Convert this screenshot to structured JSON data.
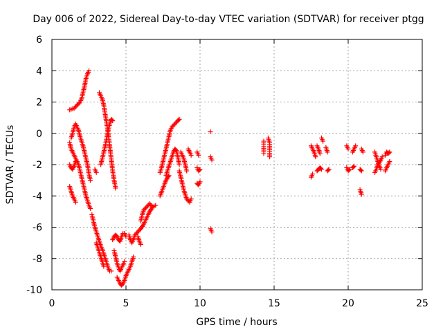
{
  "chart_data": {
    "type": "scatter",
    "title": "Day 006 of 2022, Sidereal Day-to-day VTEC variation (SDTVAR) for receiver ptgg",
    "xlabel": "GPS time / hours",
    "ylabel": "SDTVAR / TECUs",
    "xlim": [
      0,
      25
    ],
    "ylim": [
      -10,
      6
    ],
    "xticks": [
      0,
      5,
      10,
      15,
      20,
      25
    ],
    "yticks": [
      -10,
      -8,
      -6,
      -4,
      -2,
      0,
      2,
      4,
      6
    ],
    "grid": true,
    "marker": "+",
    "color": "#ff0000",
    "series": [
      {
        "name": "SDTVAR",
        "tracks": [
          [
            [
              1.2,
              1.5
            ],
            [
              1.5,
              1.6
            ],
            [
              1.7,
              1.8
            ],
            [
              1.9,
              2.0
            ],
            [
              2.0,
              2.2
            ],
            [
              2.1,
              2.6
            ],
            [
              2.2,
              3.0
            ],
            [
              2.3,
              3.5
            ],
            [
              2.4,
              3.8
            ],
            [
              2.5,
              4.0
            ]
          ],
          [
            [
              1.3,
              -0.3
            ],
            [
              1.4,
              0.0
            ],
            [
              1.5,
              0.4
            ],
            [
              1.6,
              0.6
            ],
            [
              1.7,
              0.4
            ],
            [
              1.8,
              0.2
            ],
            [
              1.9,
              -0.2
            ],
            [
              2.0,
              -0.5
            ],
            [
              2.1,
              -0.8
            ],
            [
              2.2,
              -1.2
            ],
            [
              2.3,
              -1.6
            ],
            [
              2.4,
              -2.0
            ],
            [
              2.5,
              -2.6
            ],
            [
              2.6,
              -3.0
            ]
          ],
          [
            [
              1.2,
              -0.6
            ],
            [
              1.3,
              -1.0
            ],
            [
              1.4,
              -1.2
            ],
            [
              1.5,
              -1.4
            ],
            [
              1.6,
              -1.6
            ],
            [
              1.7,
              -1.8
            ],
            [
              1.8,
              -2.0
            ],
            [
              1.9,
              -2.4
            ],
            [
              2.0,
              -2.8
            ],
            [
              2.1,
              -3.2
            ],
            [
              2.2,
              -3.6
            ],
            [
              2.3,
              -4.0
            ],
            [
              2.4,
              -4.3
            ],
            [
              2.5,
              -4.6
            ],
            [
              2.6,
              -4.8
            ]
          ],
          [
            [
              1.2,
              -2.0
            ],
            [
              1.3,
              -2.2
            ],
            [
              1.4,
              -2.3
            ],
            [
              1.5,
              -2.1
            ],
            [
              1.6,
              -1.8
            ]
          ],
          [
            [
              1.2,
              -3.4
            ],
            [
              1.3,
              -3.7
            ],
            [
              1.4,
              -4.0
            ],
            [
              1.5,
              -4.2
            ],
            [
              1.6,
              -4.4
            ]
          ],
          [
            [
              2.7,
              -5.2
            ],
            [
              2.8,
              -5.6
            ],
            [
              2.9,
              -6.0
            ],
            [
              3.0,
              -6.3
            ],
            [
              3.1,
              -6.6
            ],
            [
              3.2,
              -6.9
            ],
            [
              3.3,
              -7.2
            ],
            [
              3.4,
              -7.4
            ],
            [
              3.5,
              -7.7
            ],
            [
              3.6,
              -8.0
            ],
            [
              3.7,
              -8.3
            ],
            [
              3.8,
              -8.6
            ],
            [
              3.9,
              -8.8
            ],
            [
              4.0,
              -8.8
            ]
          ],
          [
            [
              3.0,
              -7.0
            ],
            [
              3.1,
              -7.3
            ],
            [
              3.2,
              -7.6
            ],
            [
              3.3,
              -7.9
            ],
            [
              3.4,
              -8.2
            ],
            [
              3.5,
              -8.5
            ]
          ],
          [
            [
              2.9,
              -2.3
            ],
            [
              3.0,
              -2.5
            ]
          ],
          [
            [
              3.2,
              2.6
            ],
            [
              3.3,
              2.4
            ],
            [
              3.4,
              2.2
            ],
            [
              3.5,
              1.8
            ],
            [
              3.6,
              1.2
            ],
            [
              3.7,
              0.6
            ],
            [
              3.8,
              0.0
            ],
            [
              3.9,
              -0.8
            ],
            [
              4.0,
              -1.6
            ],
            [
              4.1,
              -2.4
            ],
            [
              4.2,
              -3.0
            ],
            [
              4.3,
              -3.5
            ]
          ],
          [
            [
              3.3,
              -2.0
            ],
            [
              3.4,
              -1.6
            ],
            [
              3.5,
              -1.2
            ],
            [
              3.6,
              -0.8
            ],
            [
              3.7,
              -0.3
            ],
            [
              3.8,
              0.2
            ],
            [
              3.9,
              0.6
            ],
            [
              4.0,
              0.9
            ],
            [
              4.1,
              0.8
            ]
          ],
          [
            [
              4.1,
              -6.8
            ],
            [
              4.2,
              -6.6
            ],
            [
              4.3,
              -6.5
            ],
            [
              4.4,
              -6.6
            ],
            [
              4.5,
              -6.8
            ],
            [
              4.6,
              -6.9
            ],
            [
              4.7,
              -6.6
            ],
            [
              4.8,
              -6.4
            ],
            [
              4.9,
              -6.4
            ],
            [
              5.0,
              -6.6
            ]
          ],
          [
            [
              4.2,
              -7.5
            ],
            [
              4.3,
              -7.9
            ],
            [
              4.4,
              -8.3
            ],
            [
              4.5,
              -8.6
            ],
            [
              4.6,
              -8.8
            ],
            [
              4.7,
              -8.6
            ],
            [
              4.8,
              -8.4
            ],
            [
              4.9,
              -8.2
            ]
          ],
          [
            [
              4.4,
              -9.2
            ],
            [
              4.5,
              -9.4
            ],
            [
              4.6,
              -9.6
            ],
            [
              4.7,
              -9.7
            ],
            [
              4.8,
              -9.6
            ],
            [
              4.9,
              -9.4
            ],
            [
              5.0,
              -9.1
            ],
            [
              5.1,
              -8.9
            ],
            [
              5.2,
              -8.7
            ],
            [
              5.3,
              -8.5
            ],
            [
              5.4,
              -8.2
            ],
            [
              5.5,
              -7.9
            ]
          ],
          [
            [
              5.2,
              -6.5
            ],
            [
              5.3,
              -6.8
            ],
            [
              5.4,
              -7.0
            ],
            [
              5.5,
              -6.8
            ],
            [
              5.6,
              -6.5
            ],
            [
              5.8,
              -6.3
            ],
            [
              6.0,
              -6.1
            ],
            [
              6.2,
              -5.8
            ],
            [
              6.4,
              -5.4
            ],
            [
              6.6,
              -5.0
            ],
            [
              6.8,
              -4.7
            ]
          ],
          [
            [
              5.8,
              -6.6
            ],
            [
              5.9,
              -6.9
            ],
            [
              6.0,
              -7.1
            ]
          ],
          [
            [
              6.0,
              -5.6
            ],
            [
              6.1,
              -5.2
            ],
            [
              6.2,
              -4.9
            ],
            [
              6.4,
              -4.7
            ],
            [
              6.6,
              -4.5
            ],
            [
              6.8,
              -4.7
            ],
            [
              7.0,
              -4.6
            ]
          ],
          [
            [
              7.3,
              -2.5
            ],
            [
              7.4,
              -2.2
            ],
            [
              7.5,
              -1.8
            ],
            [
              7.6,
              -1.4
            ],
            [
              7.7,
              -1.0
            ],
            [
              7.8,
              -0.6
            ],
            [
              7.9,
              -0.2
            ],
            [
              8.0,
              0.2
            ],
            [
              8.1,
              0.4
            ],
            [
              8.3,
              0.6
            ],
            [
              8.5,
              0.8
            ],
            [
              8.6,
              0.9
            ]
          ],
          [
            [
              7.7,
              -2.7
            ],
            [
              7.8,
              -2.4
            ],
            [
              7.9,
              -2.1
            ],
            [
              8.0,
              -1.8
            ],
            [
              8.1,
              -1.5
            ],
            [
              8.2,
              -1.2
            ],
            [
              8.3,
              -1.0
            ],
            [
              8.4,
              -1.1
            ],
            [
              8.5,
              -1.5
            ],
            [
              8.6,
              -2.0
            ]
          ],
          [
            [
              7.3,
              -4.0
            ],
            [
              7.5,
              -3.5
            ],
            [
              7.7,
              -3.0
            ],
            [
              7.9,
              -2.7
            ]
          ],
          [
            [
              8.6,
              -2.4
            ],
            [
              8.7,
              -2.8
            ],
            [
              8.8,
              -3.2
            ],
            [
              8.9,
              -3.6
            ],
            [
              9.0,
              -3.9
            ],
            [
              9.1,
              -4.2
            ],
            [
              9.3,
              -4.4
            ],
            [
              9.4,
              -4.2
            ]
          ],
          [
            [
              8.7,
              -1.2
            ],
            [
              8.9,
              -1.6
            ],
            [
              9.0,
              -2.0
            ],
            [
              9.1,
              -2.4
            ]
          ],
          [
            [
              9.2,
              -1.0
            ],
            [
              9.3,
              -1.2
            ],
            [
              9.4,
              -1.4
            ]
          ],
          [
            [
              9.8,
              -1.2
            ],
            [
              9.9,
              -1.4
            ]
          ],
          [
            [
              9.8,
              -2.2
            ],
            [
              9.9,
              -2.4
            ],
            [
              10.0,
              -2.3
            ]
          ],
          [
            [
              9.8,
              -3.2
            ],
            [
              9.9,
              -3.3
            ],
            [
              10.0,
              -3.1
            ]
          ],
          [
            [
              10.7,
              0.1
            ]
          ],
          [
            [
              10.7,
              -1.5
            ],
            [
              10.8,
              -1.7
            ]
          ],
          [
            [
              10.7,
              -6.1
            ],
            [
              10.8,
              -6.3
            ]
          ],
          [
            [
              14.3,
              -0.5
            ],
            [
              14.3,
              -1.3
            ]
          ],
          [
            [
              14.6,
              -0.3
            ],
            [
              14.7,
              -0.6
            ],
            [
              14.7,
              -1.5
            ]
          ],
          [
            [
              17.5,
              -2.8
            ],
            [
              17.6,
              -2.6
            ]
          ],
          [
            [
              17.5,
              -0.8
            ],
            [
              17.6,
              -1.0
            ],
            [
              17.7,
              -1.2
            ],
            [
              17.8,
              -1.5
            ]
          ],
          [
            [
              17.9,
              -2.4
            ],
            [
              18.0,
              -2.3
            ],
            [
              18.1,
              -2.2
            ],
            [
              18.2,
              -2.3
            ]
          ],
          [
            [
              17.9,
              -0.8
            ],
            [
              18.0,
              -1.0
            ],
            [
              18.1,
              -1.3
            ]
          ],
          [
            [
              18.2,
              -0.3
            ],
            [
              18.3,
              -0.5
            ]
          ],
          [
            [
              18.5,
              -0.9
            ],
            [
              18.6,
              -1.2
            ]
          ],
          [
            [
              18.6,
              -2.4
            ],
            [
              18.7,
              -2.3
            ]
          ],
          [
            [
              19.9,
              -0.8
            ],
            [
              20.0,
              -1.0
            ]
          ],
          [
            [
              19.9,
              -2.2
            ],
            [
              20.0,
              -2.4
            ],
            [
              20.1,
              -2.3
            ]
          ],
          [
            [
              20.3,
              -1.2
            ],
            [
              20.4,
              -1.0
            ],
            [
              20.5,
              -0.8
            ]
          ],
          [
            [
              20.3,
              -2.2
            ],
            [
              20.4,
              -2.1
            ]
          ],
          [
            [
              20.8,
              -3.6
            ],
            [
              20.9,
              -3.9
            ]
          ],
          [
            [
              20.8,
              -2.3
            ],
            [
              20.9,
              -2.4
            ]
          ],
          [
            [
              20.9,
              -1.0
            ],
            [
              21.0,
              -1.2
            ]
          ],
          [
            [
              21.8,
              -1.2
            ],
            [
              21.9,
              -1.5
            ],
            [
              22.0,
              -1.8
            ],
            [
              22.1,
              -2.1
            ],
            [
              22.2,
              -2.3
            ]
          ],
          [
            [
              21.8,
              -2.5
            ],
            [
              21.9,
              -2.3
            ],
            [
              22.0,
              -2.0
            ],
            [
              22.2,
              -1.7
            ],
            [
              22.3,
              -1.5
            ]
          ],
          [
            [
              22.5,
              -1.4
            ],
            [
              22.6,
              -1.2
            ],
            [
              22.7,
              -1.3
            ],
            [
              22.8,
              -1.2
            ]
          ],
          [
            [
              22.5,
              -2.4
            ],
            [
              22.6,
              -2.2
            ],
            [
              22.7,
              -2.0
            ],
            [
              22.8,
              -1.8
            ]
          ]
        ]
      }
    ]
  }
}
